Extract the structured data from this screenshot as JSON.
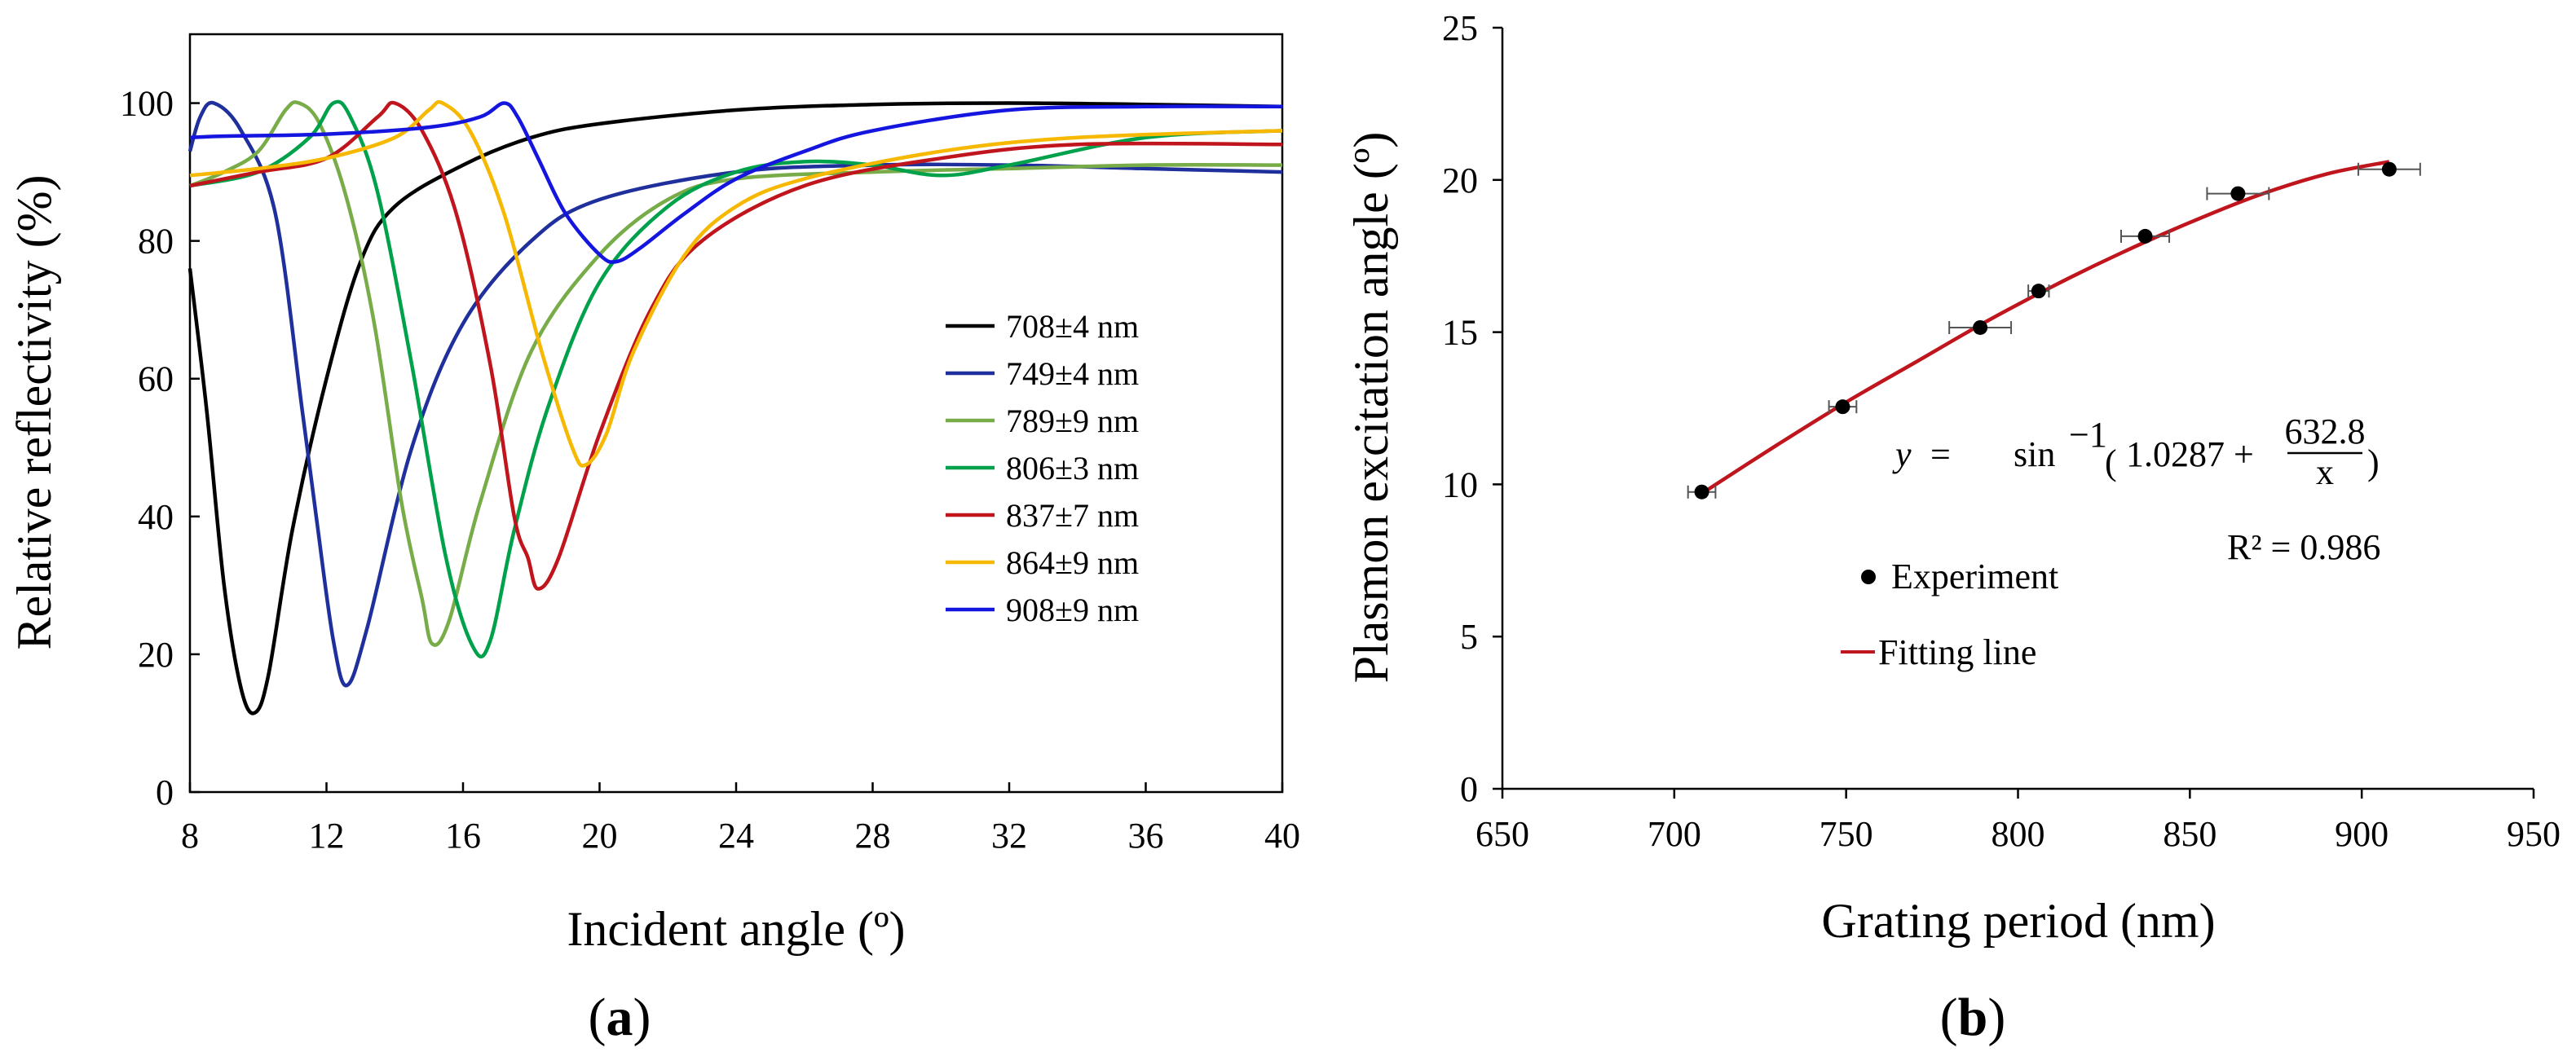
{
  "chart_data": [
    {
      "panel": "a",
      "panel_label_open": "(",
      "panel_label_letter": "a",
      "panel_label_close": ")",
      "type": "line",
      "xlabel": "Incident angle (º)",
      "ylabel": "Relative reflectivity (%)",
      "xlim": [
        8,
        40
      ],
      "ylim": [
        0,
        110
      ],
      "xticks": [
        8,
        12,
        16,
        20,
        24,
        28,
        32,
        36,
        40
      ],
      "yticks": [
        0,
        20,
        40,
        60,
        80,
        100
      ],
      "legend_position": "right",
      "series": [
        {
          "name": "708±4 nm",
          "color": "#000000",
          "x": [
            8,
            8.5,
            9,
            9.5,
            9.9,
            10.3,
            11,
            12,
            13,
            14,
            16,
            18,
            20,
            24,
            28,
            32,
            36,
            40
          ],
          "y": [
            76,
            55,
            30,
            15,
            11.5,
            17,
            38,
            60,
            77,
            85,
            91,
            95,
            97,
            99,
            99.8,
            100,
            99.8,
            99.5
          ]
        },
        {
          "name": "749±4 nm",
          "color": "#1f2f9c",
          "x": [
            8,
            8.3,
            8.7,
            9.5,
            10.5,
            11.3,
            11.7,
            12.2,
            12.6,
            13.2,
            14.5,
            16,
            18,
            20,
            24,
            28,
            32,
            36,
            40
          ],
          "y": [
            93,
            98,
            100,
            96,
            84,
            55,
            40,
            22,
            15.5,
            24,
            50,
            68,
            80,
            86,
            90,
            91,
            91,
            90.5,
            90
          ]
        },
        {
          "name": "789±9 nm",
          "color": "#77ac48",
          "x": [
            8,
            9,
            10,
            10.8,
            11.2,
            11.8,
            12.6,
            13.4,
            14.2,
            14.8,
            15.1,
            15.6,
            16.5,
            18,
            20,
            22,
            24,
            28,
            32,
            36,
            40
          ],
          "y": [
            88,
            90,
            93,
            99,
            100,
            97,
            86,
            68,
            42,
            28,
            21.5,
            25,
            42,
            64,
            78,
            86,
            89,
            90,
            90.5,
            91,
            91
          ]
        },
        {
          "name": "806±3 nm",
          "color": "#00a14b",
          "x": [
            8,
            10,
            11.5,
            12.2,
            12.7,
            13.5,
            14.5,
            15.5,
            16.3,
            16.8,
            17.5,
            18.5,
            20,
            22,
            24,
            26,
            28,
            30,
            32,
            36,
            40
          ],
          "y": [
            88,
            90,
            95,
            100,
            98,
            87,
            62,
            34,
            21,
            22,
            38,
            56,
            74,
            85,
            90,
            91.5,
            91,
            89.5,
            91,
            95,
            96
          ]
        },
        {
          "name": "837±7 nm",
          "color": "#c0151d",
          "x": [
            8,
            10,
            12,
            13.5,
            14,
            14.8,
            15.8,
            16.8,
            17.5,
            17.9,
            18.2,
            18.8,
            20,
            21.5,
            23,
            26,
            30,
            34,
            40
          ],
          "y": [
            88,
            90,
            92,
            98,
            100,
            96,
            84,
            62,
            40,
            34,
            29.5,
            34,
            52,
            70,
            80,
            88,
            92,
            94,
            94
          ]
        },
        {
          "name": "864±9 nm",
          "color": "#f6b800",
          "x": [
            8,
            10,
            12,
            14,
            15,
            15.4,
            16.2,
            17.2,
            18.3,
            19.2,
            19.6,
            20.2,
            21,
            22.5,
            24,
            26,
            30,
            34,
            40
          ],
          "y": [
            89.5,
            90.5,
            92,
            95,
            99,
            100,
            96,
            84,
            64,
            50,
            47.5,
            52,
            64,
            78,
            85,
            89,
            93,
            95,
            96
          ]
        },
        {
          "name": "908±9 nm",
          "color": "#1515e0",
          "x": [
            8,
            9,
            12,
            15,
            16.5,
            17.2,
            17.6,
            18.2,
            19,
            20,
            20.5,
            21.2,
            22.5,
            24,
            26,
            28,
            32,
            36,
            40
          ],
          "y": [
            95,
            95.2,
            95.5,
            96.5,
            98,
            100,
            98,
            92,
            84,
            78,
            77,
            79,
            84,
            89,
            93,
            96,
            99,
            99.5,
            99.5
          ]
        }
      ]
    },
    {
      "panel": "b",
      "panel_label_open": "(",
      "panel_label_letter": "b",
      "panel_label_close": ")",
      "type": "scatter",
      "xlabel": "Grating period (nm)",
      "ylabel": "Plasmon excitation angle (º)",
      "xlim": [
        650,
        950
      ],
      "ylim": [
        0,
        25
      ],
      "xticks": [
        650,
        700,
        750,
        800,
        850,
        900,
        950
      ],
      "yticks": [
        0,
        5,
        10,
        15,
        20,
        25
      ],
      "legend_position": "center",
      "series": [
        {
          "name": "Experiment",
          "kind": "points",
          "color": "#000000",
          "x": [
            708,
            749,
            789,
            806,
            837,
            864,
            908
          ],
          "y": [
            9.75,
            12.55,
            15.15,
            16.35,
            18.15,
            19.55,
            20.35
          ],
          "xerr": [
            4,
            4,
            9,
            3,
            7,
            9,
            9
          ]
        },
        {
          "name": "Fitting line",
          "kind": "fit",
          "color": "#c0151d",
          "x": [
            708,
            730,
            750,
            770,
            790,
            810,
            830,
            850,
            870,
            890,
            908
          ],
          "y": [
            9.7,
            11.3,
            12.7,
            14.0,
            15.3,
            16.5,
            17.6,
            18.6,
            19.5,
            20.2,
            20.6
          ]
        }
      ],
      "equation": {
        "lhs": "y",
        "equals": "=",
        "func": "sin",
        "exponent": "−1",
        "constant": "1.0287 +",
        "numerator": "632.8",
        "denominator": "x",
        "paren_open": "(",
        "paren_close": ")"
      },
      "r_squared": "R² = 0.986"
    }
  ]
}
